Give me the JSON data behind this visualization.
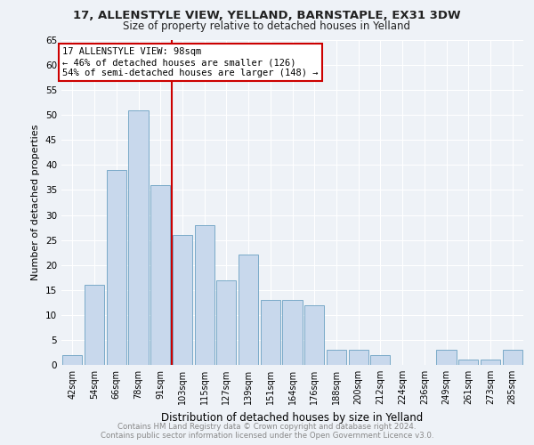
{
  "title": "17, ALLENSTYLE VIEW, YELLAND, BARNSTAPLE, EX31 3DW",
  "subtitle": "Size of property relative to detached houses in Yelland",
  "xlabel": "Distribution of detached houses by size in Yelland",
  "ylabel": "Number of detached properties",
  "categories": [
    "42sqm",
    "54sqm",
    "66sqm",
    "78sqm",
    "91sqm",
    "103sqm",
    "115sqm",
    "127sqm",
    "139sqm",
    "151sqm",
    "164sqm",
    "176sqm",
    "188sqm",
    "200sqm",
    "212sqm",
    "224sqm",
    "236sqm",
    "249sqm",
    "261sqm",
    "273sqm",
    "285sqm"
  ],
  "values": [
    2,
    16,
    39,
    51,
    36,
    26,
    28,
    17,
    22,
    13,
    13,
    12,
    3,
    3,
    2,
    0,
    0,
    3,
    1,
    1,
    3
  ],
  "bar_color": "#c8d8ec",
  "bar_edge_color": "#7aaac8",
  "vline_x": 5.0,
  "vline_color": "#cc0000",
  "annotation_title": "17 ALLENSTYLE VIEW: 98sqm",
  "annotation_line1": "← 46% of detached houses are smaller (126)",
  "annotation_line2": "54% of semi-detached houses are larger (148) →",
  "annotation_box_color": "#cc0000",
  "ylim": [
    0,
    65
  ],
  "yticks": [
    0,
    5,
    10,
    15,
    20,
    25,
    30,
    35,
    40,
    45,
    50,
    55,
    60,
    65
  ],
  "footer_line1": "Contains HM Land Registry data © Crown copyright and database right 2024.",
  "footer_line2": "Contains public sector information licensed under the Open Government Licence v3.0.",
  "background_color": "#eef2f7",
  "grid_color": "#ffffff"
}
